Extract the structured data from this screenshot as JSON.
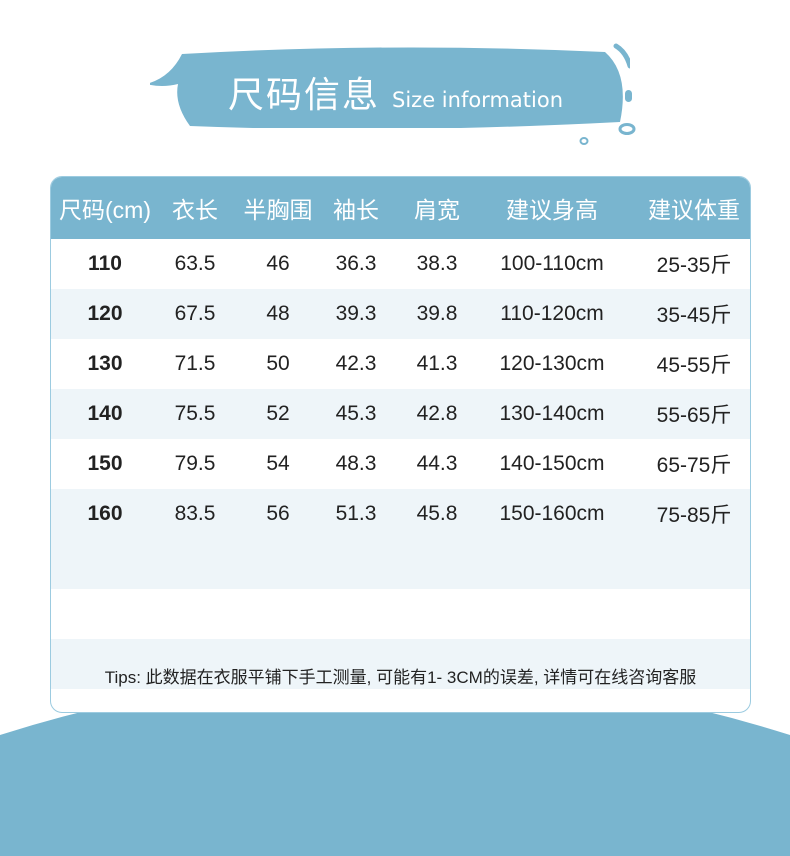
{
  "banner": {
    "title_cn": "尺码信息",
    "title_en": "Size information"
  },
  "table": {
    "headers": [
      "尺码(cm)",
      "衣长",
      "半胸围",
      "袖长",
      "肩宽",
      "建议身高",
      "建议体重"
    ],
    "rows": [
      [
        "110",
        "63.5",
        "46",
        "36.3",
        "38.3",
        "100-110cm",
        "25-35斤"
      ],
      [
        "120",
        "67.5",
        "48",
        "39.3",
        "39.8",
        "110-120cm",
        "35-45斤"
      ],
      [
        "130",
        "71.5",
        "50",
        "42.3",
        "41.3",
        "120-130cm",
        "45-55斤"
      ],
      [
        "140",
        "75.5",
        "52",
        "45.3",
        "42.8",
        "130-140cm",
        "55-65斤"
      ],
      [
        "150",
        "79.5",
        "54",
        "48.3",
        "44.3",
        "140-150cm",
        "65-75斤"
      ],
      [
        "160",
        "83.5",
        "56",
        "51.3",
        "45.8",
        "150-160cm",
        "75-85斤"
      ]
    ],
    "tips": "Tips: 此数据在衣服平铺下手工测量, 可能有1- 3CM的误差, 详情可在线咨询客服"
  },
  "colors": {
    "accent": "#79b5cf",
    "stripe": "#eef5f9"
  }
}
